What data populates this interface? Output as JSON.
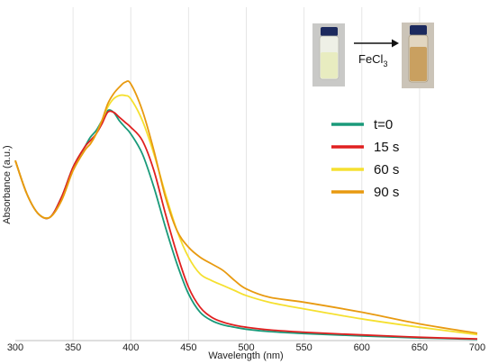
{
  "chart_data": {
    "type": "line",
    "xlabel": "Wavelength (nm)",
    "ylabel": "Absorbance (a.u.)",
    "xlim": [
      300,
      700
    ],
    "xticks": [
      300,
      350,
      400,
      450,
      500,
      550,
      600,
      650,
      700
    ],
    "ylim": [
      0,
      1
    ],
    "y_ticks_shown": false,
    "grid": "vertical",
    "legend_placement": "center-right",
    "series": [
      {
        "name": "t=0",
        "color": "#1a9a7a",
        "x": [
          300,
          310,
          320,
          330,
          340,
          350,
          360,
          365,
          370,
          375,
          380,
          385,
          390,
          395,
          400,
          410,
          420,
          430,
          440,
          450,
          460,
          470,
          480,
          490,
          500,
          520,
          550,
          600,
          650,
          700
        ],
        "y": [
          0.54,
          0.44,
          0.38,
          0.37,
          0.43,
          0.52,
          0.58,
          0.61,
          0.63,
          0.66,
          0.69,
          0.685,
          0.66,
          0.64,
          0.62,
          0.56,
          0.46,
          0.34,
          0.23,
          0.14,
          0.085,
          0.06,
          0.047,
          0.04,
          0.034,
          0.027,
          0.021,
          0.014,
          0.008,
          0.004
        ]
      },
      {
        "name": "15 s",
        "color": "#e02020",
        "x": [
          300,
          310,
          320,
          330,
          340,
          350,
          360,
          365,
          370,
          375,
          380,
          385,
          390,
          395,
          400,
          410,
          420,
          430,
          440,
          450,
          460,
          470,
          480,
          490,
          500,
          520,
          550,
          600,
          650,
          700
        ],
        "y": [
          0.54,
          0.44,
          0.38,
          0.37,
          0.43,
          0.52,
          0.58,
          0.6,
          0.62,
          0.65,
          0.685,
          0.685,
          0.67,
          0.655,
          0.64,
          0.6,
          0.51,
          0.38,
          0.26,
          0.16,
          0.1,
          0.07,
          0.055,
          0.046,
          0.04,
          0.032,
          0.025,
          0.017,
          0.01,
          0.005
        ]
      },
      {
        "name": "60 s",
        "color": "#f5e030",
        "x": [
          300,
          310,
          320,
          330,
          340,
          350,
          360,
          365,
          370,
          375,
          380,
          385,
          390,
          395,
          400,
          410,
          420,
          430,
          440,
          450,
          460,
          470,
          480,
          490,
          500,
          520,
          550,
          600,
          650,
          700
        ],
        "y": [
          0.54,
          0.44,
          0.38,
          0.37,
          0.42,
          0.51,
          0.57,
          0.59,
          0.62,
          0.66,
          0.7,
          0.725,
          0.735,
          0.735,
          0.725,
          0.66,
          0.56,
          0.44,
          0.33,
          0.25,
          0.2,
          0.18,
          0.165,
          0.15,
          0.135,
          0.115,
          0.095,
          0.065,
          0.04,
          0.018
        ]
      },
      {
        "name": "90 s",
        "color": "#e89a10",
        "x": [
          300,
          310,
          320,
          330,
          340,
          350,
          360,
          365,
          370,
          375,
          380,
          385,
          390,
          395,
          400,
          410,
          420,
          430,
          440,
          450,
          460,
          470,
          480,
          490,
          500,
          520,
          550,
          600,
          650,
          700
        ],
        "y": [
          0.54,
          0.44,
          0.38,
          0.37,
          0.42,
          0.51,
          0.57,
          0.59,
          0.62,
          0.66,
          0.71,
          0.74,
          0.76,
          0.775,
          0.77,
          0.69,
          0.57,
          0.43,
          0.33,
          0.28,
          0.25,
          0.23,
          0.21,
          0.18,
          0.155,
          0.13,
          0.115,
          0.085,
          0.05,
          0.022
        ]
      }
    ]
  },
  "inset": {
    "reagent_label": "FeCl",
    "reagent_subscript": "3",
    "vial_before_color": "#e8ecc0",
    "vial_after_color": "#c9a060",
    "vial_cap_color": "#1c2a5e",
    "arrow_icon": "right-arrow-icon"
  }
}
